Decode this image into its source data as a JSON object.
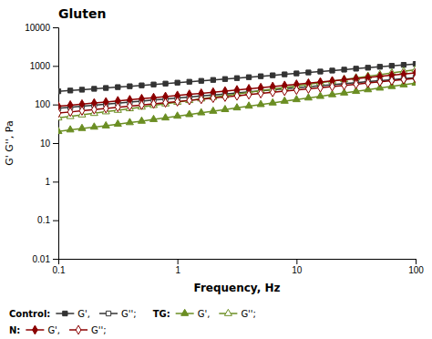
{
  "chart_data": {
    "type": "line",
    "title": "Gluten",
    "x_label": "Frequency, Hz",
    "y_label": "G' G'', Pa",
    "log": true,
    "grid": false,
    "legend": "bottom",
    "xlim": [
      0.1,
      100
    ],
    "ylim": [
      0.01,
      10000
    ],
    "xticks": [
      0.1,
      1,
      10,
      100
    ],
    "yticks": [
      0.01,
      0.1,
      1,
      10,
      100,
      1000,
      10000
    ],
    "annotations": [
      "Control:",
      "TG:",
      "N:"
    ],
    "x": [
      0.1,
      0.126,
      0.158,
      0.2,
      0.251,
      0.316,
      0.398,
      0.501,
      0.631,
      0.794,
      1.0,
      1.259,
      1.585,
      1.995,
      2.512,
      3.162,
      3.981,
      5.012,
      6.31,
      7.943,
      10.0,
      12.59,
      15.85,
      19.95,
      25.12,
      31.62,
      39.81,
      50.12,
      63.1,
      79.43,
      100.0
    ],
    "series": [
      {
        "name": "G',",
        "color": "#333333",
        "marker": "square",
        "values": [
          220,
          230,
          242,
          255,
          268,
          282,
          297,
          313,
          330,
          348,
          368,
          388,
          410,
          433,
          457,
          483,
          510,
          540,
          571,
          604,
          639,
          676,
          715,
          757,
          801,
          848,
          898,
          950,
          1006,
          1064,
          1127
        ]
      },
      {
        "name": "G'';",
        "color": "#333333",
        "marker": "square-open",
        "values": [
          80,
          85,
          90,
          96,
          102,
          108,
          115,
          122,
          130,
          138,
          147,
          156,
          166,
          176,
          187,
          199,
          212,
          225,
          240,
          255,
          271,
          288,
          306,
          325,
          346,
          368,
          391,
          415,
          441,
          469,
          498
        ]
      },
      {
        "name": "G',",
        "color": "#6b8e23",
        "marker": "triangle-up",
        "values": [
          20,
          22,
          24,
          26,
          28,
          31,
          34,
          37,
          41,
          45,
          50,
          55,
          61,
          67,
          74,
          82,
          91,
          100,
          110,
          122,
          134,
          148,
          163,
          180,
          199,
          219,
          242,
          267,
          294,
          324,
          358
        ]
      },
      {
        "name": "G'';",
        "color": "#6b8e23",
        "marker": "triangle-up-open",
        "values": [
          45,
          49,
          54,
          59,
          65,
          71,
          78,
          86,
          95,
          104,
          115,
          127,
          140,
          154,
          170,
          187,
          206,
          227,
          250,
          275,
          303,
          334,
          368,
          405,
          446,
          491,
          541,
          595,
          655,
          721,
          793
        ]
      },
      {
        "name": "G',",
        "color": "#8b0000",
        "marker": "diamond",
        "values": [
          90,
          96,
          102,
          109,
          116,
          124,
          132,
          141,
          150,
          160,
          171,
          183,
          195,
          208,
          222,
          238,
          254,
          272,
          291,
          311,
          333,
          356,
          381,
          408,
          437,
          467,
          500,
          536,
          574,
          614,
          658
        ]
      },
      {
        "name": "G'';",
        "color": "#8b0000",
        "marker": "diamond-open",
        "values": [
          60,
          64,
          69,
          74,
          79,
          85,
          91,
          97,
          104,
          111,
          119,
          128,
          137,
          147,
          157,
          168,
          180,
          193,
          207,
          222,
          238,
          255,
          273,
          293,
          314,
          336,
          360,
          386,
          413,
          443,
          474
        ]
      }
    ]
  }
}
